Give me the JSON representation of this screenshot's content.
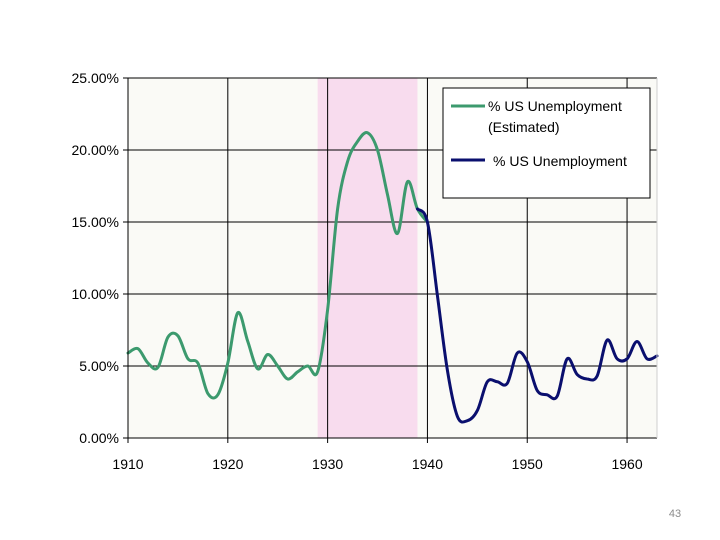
{
  "page_number": "43",
  "chart_data": {
    "type": "line",
    "title": "",
    "xlabel": "",
    "ylabel": "",
    "xlim": [
      1910,
      1963
    ],
    "ylim": [
      0,
      25
    ],
    "x_ticks": [
      1910,
      1920,
      1930,
      1940,
      1950,
      1960
    ],
    "x_tick_labels": [
      "1910",
      "1920",
      "1930",
      "1940",
      "1950",
      "1960"
    ],
    "y_ticks": [
      0,
      5,
      10,
      15,
      20,
      25
    ],
    "y_tick_labels": [
      "0.00%",
      "5.00%",
      "10.00%",
      "15.00%",
      "20.00%",
      "25.00%"
    ],
    "grid": true,
    "legend_position": "top-right",
    "shaded_region": {
      "x_start": 1929,
      "x_end": 1939,
      "color": "#f8dcee"
    },
    "colors": {
      "plot_background": "#fafaf6",
      "grid": "#000000"
    },
    "series": [
      {
        "name": "% US Unemployment (Estimated)",
        "legend_lines": [
          "% US Unemployment",
          "(Estimated)"
        ],
        "color": "#3c9a6e",
        "x": [
          1910,
          1911,
          1912,
          1913,
          1914,
          1915,
          1916,
          1917,
          1918,
          1919,
          1920,
          1921,
          1922,
          1923,
          1924,
          1925,
          1926,
          1927,
          1928,
          1929,
          1930,
          1931,
          1932,
          1933,
          1934,
          1935,
          1936,
          1937,
          1938,
          1939,
          1940
        ],
        "y": [
          5.9,
          6.2,
          5.2,
          4.9,
          7.0,
          7.1,
          5.5,
          5.2,
          3.1,
          3.0,
          5.2,
          8.7,
          6.7,
          4.8,
          5.8,
          5.0,
          4.1,
          4.6,
          5.0,
          4.6,
          8.9,
          15.9,
          19.2,
          20.6,
          21.2,
          20.0,
          16.9,
          14.2,
          17.8,
          15.9,
          15.0
        ]
      },
      {
        "name": "% US Unemployment",
        "legend_lines": [
          "% US Unemployment"
        ],
        "color": "#0a0f6e",
        "x": [
          1939,
          1940,
          1941,
          1942,
          1943,
          1944,
          1945,
          1946,
          1947,
          1948,
          1949,
          1950,
          1951,
          1952,
          1953,
          1954,
          1955,
          1956,
          1957,
          1958,
          1959,
          1960,
          1961,
          1962,
          1963
        ],
        "y": [
          15.9,
          15.0,
          9.9,
          4.7,
          1.5,
          1.2,
          1.9,
          3.9,
          3.9,
          3.8,
          5.9,
          5.3,
          3.3,
          3.0,
          2.9,
          5.5,
          4.4,
          4.1,
          4.3,
          6.8,
          5.5,
          5.5,
          6.7,
          5.5,
          5.7
        ]
      }
    ]
  }
}
